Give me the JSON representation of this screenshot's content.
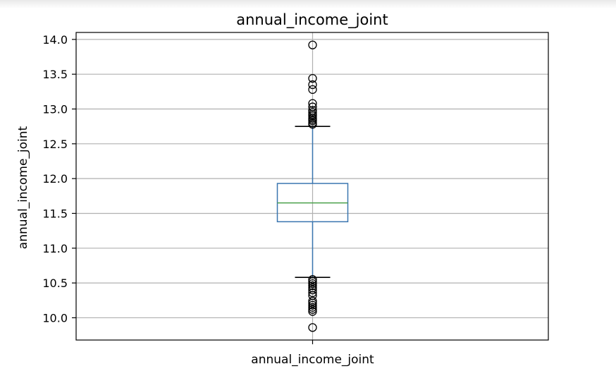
{
  "chart_data": {
    "type": "box",
    "title": "annual_income_joint",
    "xlabel": "",
    "ylabel": "annual_income_joint",
    "categories": [
      "annual_income_joint"
    ],
    "ylim": [
      9.68,
      14.1
    ],
    "yticks": [
      "10.0",
      "10.5",
      "11.0",
      "11.5",
      "12.0",
      "12.5",
      "13.0",
      "13.5",
      "14.0"
    ],
    "grid": true,
    "box": {
      "q1": 11.38,
      "median": 11.65,
      "q3": 11.93,
      "whisker_low": 10.58,
      "whisker_high": 12.75
    },
    "outliers": [
      13.92,
      13.44,
      13.35,
      13.28,
      13.08,
      13.03,
      12.98,
      12.95,
      12.92,
      12.9,
      12.87,
      12.85,
      12.83,
      12.8,
      12.78,
      10.55,
      10.52,
      10.49,
      10.46,
      10.43,
      10.4,
      10.36,
      10.32,
      10.24,
      10.21,
      10.18,
      10.15,
      10.12,
      10.09,
      9.86
    ],
    "colors": {
      "box": "#3a76b0",
      "median": "#4aa14a",
      "whisker": "#3a76b0",
      "cap": "#000000",
      "grid": "#b0b0b0",
      "outlier": "#000000"
    }
  }
}
